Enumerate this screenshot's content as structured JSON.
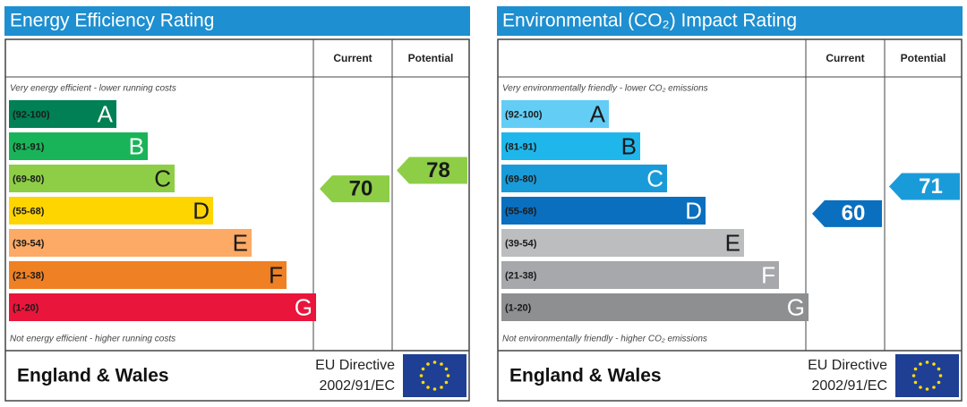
{
  "panels": [
    {
      "title": "Energy Efficiency Rating",
      "headers": [
        "Current",
        "Potential"
      ],
      "top_note": "Very energy efficient - lower running costs",
      "bottom_note": "Not energy efficient - higher running costs",
      "bands": [
        {
          "range": "(92-100)",
          "letter": "A",
          "color": "#008054",
          "letter_color": "#ffffff"
        },
        {
          "range": "(81-91)",
          "letter": "B",
          "color": "#19b459",
          "letter_color": "#ffffff"
        },
        {
          "range": "(69-80)",
          "letter": "C",
          "color": "#8dce46",
          "letter_color": "#1a1a1a"
        },
        {
          "range": "(55-68)",
          "letter": "D",
          "color": "#ffd500",
          "letter_color": "#1a1a1a"
        },
        {
          "range": "(39-54)",
          "letter": "E",
          "color": "#fcaa65",
          "letter_color": "#1a1a1a"
        },
        {
          "range": "(21-38)",
          "letter": "F",
          "color": "#ef8023",
          "letter_color": "#1a1a1a"
        },
        {
          "range": "(1-20)",
          "letter": "G",
          "color": "#e9153b",
          "letter_color": "#ffffff"
        }
      ],
      "current": 70,
      "potential": 78,
      "footer": {
        "region": "England & Wales",
        "directive": "EU Directive",
        "directive_code": "2002/91/EC"
      }
    },
    {
      "title": "Environmental (CO₂) Impact Rating",
      "headers": [
        "Current",
        "Potential"
      ],
      "top_note": "Very environmentally friendly - lower CO₂ emissions",
      "bottom_note": "Not environmentally friendly - higher CO₂ emissions",
      "bands": [
        {
          "range": "(92-100)",
          "letter": "A",
          "color": "#63cdf5",
          "letter_color": "#1a1a1a"
        },
        {
          "range": "(81-91)",
          "letter": "B",
          "color": "#1fb7eb",
          "letter_color": "#1a1a1a"
        },
        {
          "range": "(69-80)",
          "letter": "C",
          "color": "#1a9bd9",
          "letter_color": "#ffffff"
        },
        {
          "range": "(55-68)",
          "letter": "D",
          "color": "#0b6fbf",
          "letter_color": "#ffffff"
        },
        {
          "range": "(39-54)",
          "letter": "E",
          "color": "#bbbdbf",
          "letter_color": "#1a1a1a"
        },
        {
          "range": "(21-38)",
          "letter": "F",
          "color": "#a6a8ab",
          "letter_color": "#ffffff"
        },
        {
          "range": "(1-20)",
          "letter": "G",
          "color": "#8d8f91",
          "letter_color": "#ffffff"
        }
      ],
      "current": 60,
      "potential": 71,
      "footer": {
        "region": "England & Wales",
        "directive": "EU Directive",
        "directive_code": "2002/91/EC"
      }
    }
  ]
}
